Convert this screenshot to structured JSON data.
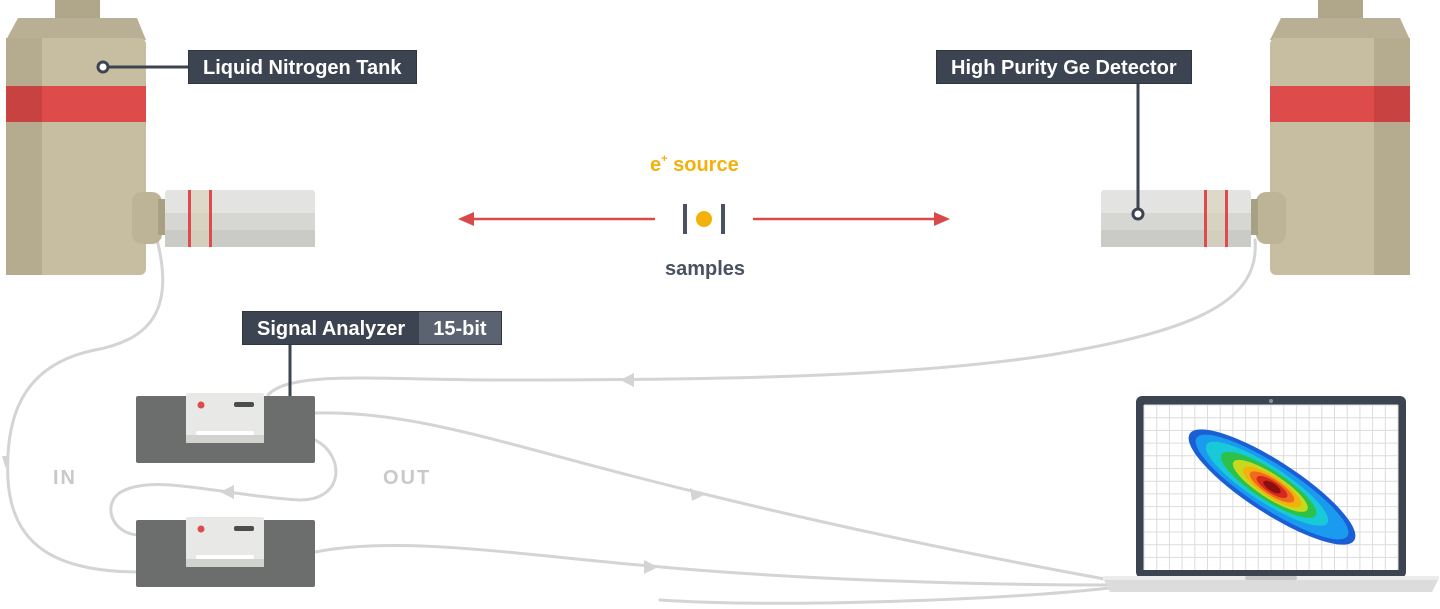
{
  "labels": {
    "tank": "Liquid Nitrogen Tank",
    "detector": "High Purity Ge Detector",
    "analyzer": "Signal Analyzer",
    "analyzer_bits": "15-bit",
    "source_prefix": "e",
    "source_sup": "+",
    "source_suffix": " source",
    "samples": "samples",
    "in": "IN",
    "out": "OUT"
  },
  "colors": {
    "tank_body": "#c7bea2",
    "tank_shade": "#b5ab8e",
    "tank_top": "#b0a68a",
    "tank_stripe": "#de4b4b",
    "detector_body": "#e3e3e1",
    "cable": "#d4d4d4",
    "module": "#6b6e6c",
    "label_bg": "#3d4451",
    "arrow": "#d84a4a",
    "source": "#f2b10b"
  },
  "icons": [
    "arrow-left-icon",
    "arrow-right-icon",
    "positron-source-icon",
    "laptop-icon",
    "heatmap-plot-icon"
  ]
}
